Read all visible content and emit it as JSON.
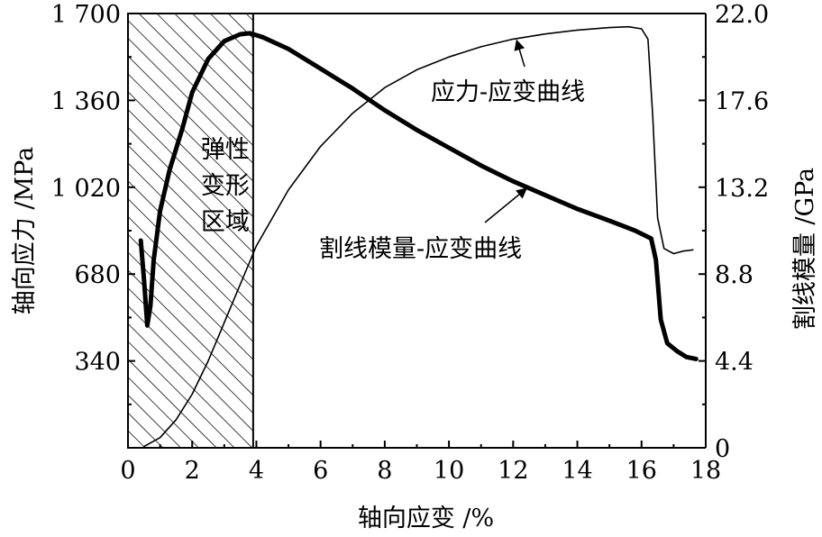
{
  "chart_data": {
    "type": "line",
    "xlabel": "轴向应变 /%",
    "ylabel_left": "轴向应力 /MPa",
    "ylabel_right": "割线模量 /GPa",
    "xlim": [
      0,
      18
    ],
    "ylim_left": [
      0,
      1700
    ],
    "ylim_right": [
      0,
      22.0
    ],
    "x_ticks": [
      0,
      2,
      4,
      6,
      8,
      10,
      12,
      14,
      16,
      18
    ],
    "x_tick_labels": [
      "0",
      "2",
      "4",
      "6",
      "8",
      "10",
      "12",
      "14",
      "16",
      "18"
    ],
    "y_left_ticks": [
      340,
      680,
      1020,
      1360,
      1700
    ],
    "y_left_tick_labels": [
      "340",
      "680",
      "1 020",
      "1 360",
      "1 700"
    ],
    "y_right_ticks": [
      0,
      4.4,
      8.8,
      13.2,
      17.6,
      22.0
    ],
    "y_right_tick_labels": [
      "0",
      "4.4",
      "8.8",
      "13.2",
      "17.6",
      "22.0"
    ],
    "shaded_region": {
      "x_range": [
        0,
        3.9
      ],
      "label": [
        "弹性",
        "变形",
        "区域"
      ]
    },
    "series": [
      {
        "name": "应力-应变曲线",
        "axis": "left",
        "x": [
          0.5,
          1.0,
          1.5,
          2.0,
          2.5,
          3.0,
          3.5,
          4.0,
          5.0,
          6.0,
          7.0,
          8.0,
          9.0,
          10.0,
          11.0,
          12.0,
          13.0,
          14.0,
          15.0,
          15.6,
          16.0,
          16.2,
          16.35,
          16.5,
          16.7,
          17.0,
          17.3,
          17.6
        ],
        "values": [
          5,
          40,
          110,
          210,
          340,
          490,
          640,
          790,
          1010,
          1180,
          1310,
          1410,
          1480,
          1530,
          1570,
          1600,
          1620,
          1635,
          1645,
          1648,
          1640,
          1600,
          1300,
          900,
          780,
          760,
          770,
          775
        ]
      },
      {
        "name": "割线模量-应变曲线",
        "axis": "right",
        "x": [
          0.4,
          0.5,
          0.6,
          0.7,
          0.8,
          1.0,
          1.3,
          1.7,
          2.0,
          2.5,
          3.0,
          3.5,
          3.8,
          4.2,
          5.0,
          6.0,
          7.0,
          8.0,
          9.0,
          10.0,
          11.0,
          12.0,
          13.0,
          14.0,
          15.0,
          15.8,
          16.3,
          16.45,
          16.6,
          16.8,
          17.1,
          17.4,
          17.7
        ],
        "values": [
          10.5,
          8.5,
          6.2,
          7.2,
          9.5,
          12.0,
          14.1,
          16.2,
          18.0,
          19.7,
          20.6,
          20.95,
          21.0,
          20.8,
          20.2,
          19.2,
          18.2,
          17.1,
          16.1,
          15.2,
          14.3,
          13.5,
          12.8,
          12.1,
          11.5,
          11.0,
          10.6,
          9.5,
          6.5,
          5.3,
          4.9,
          4.6,
          4.5
        ]
      }
    ],
    "annotations": [
      {
        "text": "应力-应变曲线",
        "arrow_to": {
          "x": 12.2,
          "axis": "left",
          "y": 1610
        }
      },
      {
        "text": "割线模量-应变曲线",
        "arrow_to": {
          "x": 12.4,
          "axis": "right",
          "y": 13.3
        }
      }
    ]
  }
}
